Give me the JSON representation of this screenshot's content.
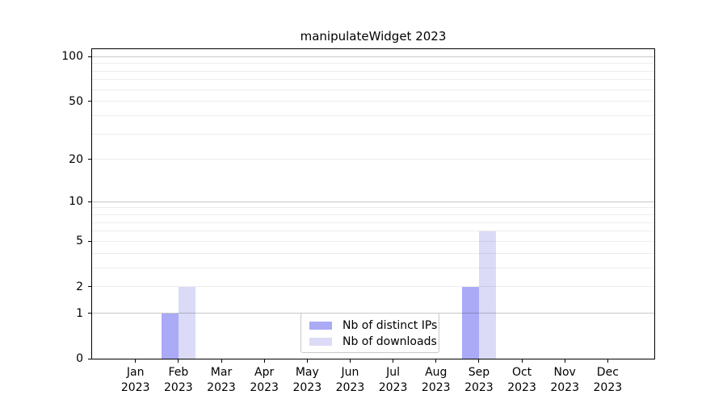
{
  "chart_data": {
    "type": "bar",
    "title": "manipulateWidget 2023",
    "x_year": "2023",
    "categories": [
      "Jan",
      "Feb",
      "Mar",
      "Apr",
      "May",
      "Jun",
      "Jul",
      "Aug",
      "Sep",
      "Oct",
      "Nov",
      "Dec"
    ],
    "series": [
      {
        "name": "Nb of distinct IPs",
        "color": "#aaaaf7",
        "values": [
          0,
          1,
          0,
          0,
          0,
          0,
          0,
          0,
          2,
          0,
          0,
          0
        ]
      },
      {
        "name": "Nb of downloads",
        "color": "#dbdbf7",
        "values": [
          0,
          2,
          0,
          0,
          0,
          0,
          0,
          0,
          6,
          0,
          0,
          0
        ]
      }
    ],
    "y_axis": {
      "scale": "log1p",
      "ticks": [
        0,
        1,
        2,
        5,
        10,
        20,
        50,
        100
      ],
      "max": 112,
      "major_gridlines": [
        1,
        10,
        100
      ],
      "minor_gridlines": [
        2,
        3,
        4,
        5,
        6,
        7,
        8,
        9,
        20,
        30,
        40,
        50,
        60,
        70,
        80,
        90
      ]
    },
    "grid": "on",
    "legend_position": "lower center",
    "colors": {
      "spine": "#000000",
      "major_grid": "rgba(0,0,0,0.22)",
      "minor_grid": "rgba(0,0,0,0.07)"
    }
  }
}
